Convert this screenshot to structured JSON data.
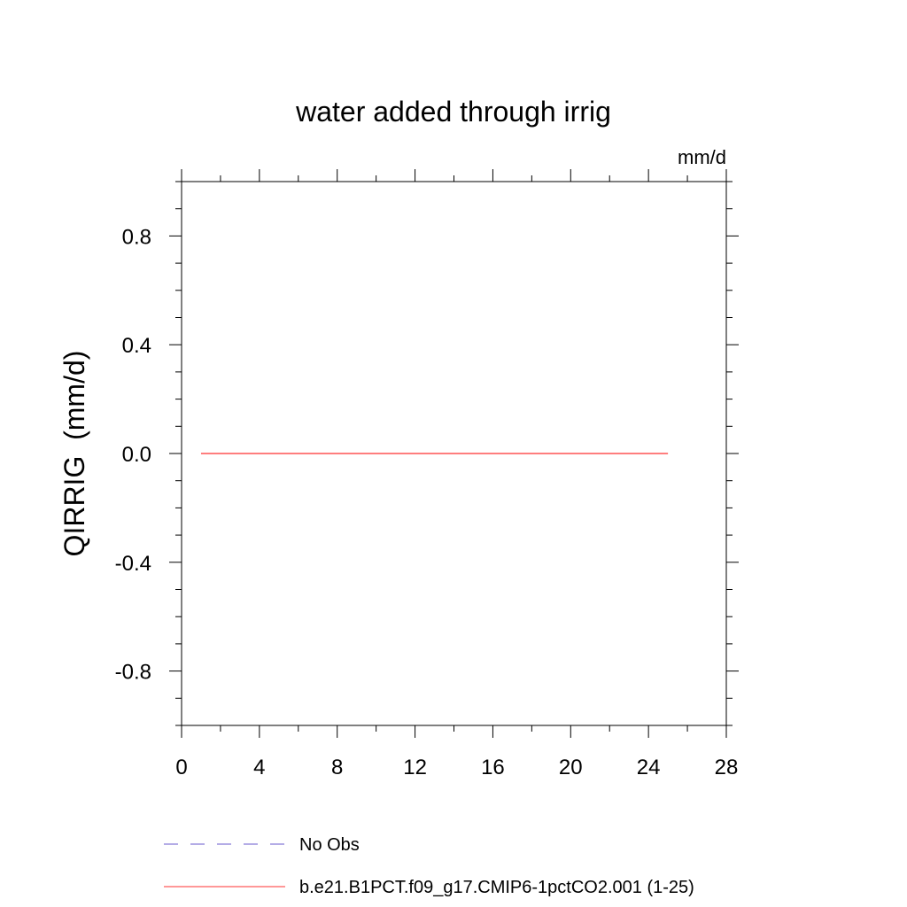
{
  "chart_data": {
    "type": "line",
    "title": "water added through irrig",
    "units": "mm/d",
    "ylabel": "QIRRIG  (mm/d)",
    "xlabel": "",
    "xlim": [
      0,
      28
    ],
    "ylim": [
      -1.0,
      1.0
    ],
    "x_ticks": [
      0,
      4,
      8,
      12,
      16,
      20,
      24,
      28
    ],
    "x_tick_labels": [
      "0",
      "4",
      "8",
      "12",
      "16",
      "20",
      "24",
      "28"
    ],
    "y_ticks": [
      -0.8,
      -0.4,
      0.0,
      0.4,
      0.8
    ],
    "y_tick_labels": [
      "-0.8",
      "-0.4",
      "0.0",
      "0.4",
      "0.8"
    ],
    "grid": false,
    "legend_position": "bottom",
    "series": [
      {
        "name": "No Obs",
        "color": "#6a5acd",
        "dash": "dashed",
        "x": [],
        "y": []
      },
      {
        "name": "b.e21.B1PCT.f09_g17.CMIP6-1pctCO2.001 (1-25)",
        "color": "#ff3030",
        "dash": "solid",
        "x": [
          1,
          25
        ],
        "y": [
          0.0,
          0.0
        ]
      }
    ]
  }
}
